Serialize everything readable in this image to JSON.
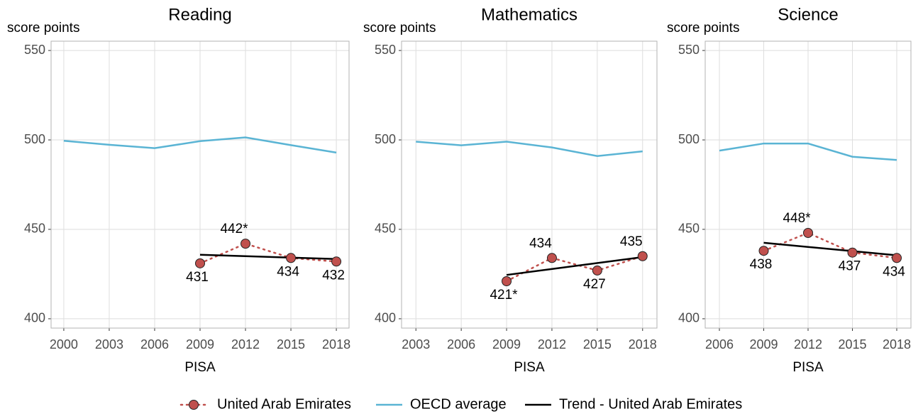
{
  "legend": {
    "series": [
      {
        "name": "United Arab Emirates",
        "color": "#c0504d"
      },
      {
        "name": "OECD average",
        "color": "#5ab4d4"
      },
      {
        "name": "Trend - United Arab Emirates",
        "color": "#000000"
      }
    ]
  },
  "chart_data": [
    {
      "type": "line",
      "title": "Reading",
      "ylabel": "score points",
      "xlabel": "PISA",
      "x": [
        2000,
        2003,
        2006,
        2009,
        2012,
        2015,
        2018
      ],
      "xlim": [
        1999.16,
        2018.84
      ],
      "xticks": [
        2000,
        2003,
        2006,
        2009,
        2012,
        2015,
        2018
      ],
      "ylim": [
        394.8,
        555.2
      ],
      "yticks": [
        400,
        450,
        500,
        550
      ],
      "grid": true,
      "series": [
        {
          "values": [
            null,
            null,
            null,
            431,
            442,
            434,
            432
          ],
          "value_labels": [
            null,
            null,
            null,
            "431",
            "442*",
            "434",
            "432"
          ]
        },
        {
          "values": [
            499.5,
            497.3,
            495.4,
            499.3,
            501.4,
            497.1,
            492.9
          ]
        },
        {
          "x": [
            2009,
            2018
          ],
          "values": [
            435.8,
            433.4
          ]
        }
      ]
    },
    {
      "type": "line",
      "title": "Mathematics",
      "ylabel": "score points",
      "xlabel": "PISA",
      "x": [
        2003,
        2006,
        2009,
        2012,
        2015,
        2018
      ],
      "xlim": [
        2002.05,
        2018.95
      ],
      "xticks": [
        2003,
        2006,
        2009,
        2012,
        2015,
        2018
      ],
      "ylim": [
        394.8,
        555.2
      ],
      "yticks": [
        400,
        450,
        500,
        550
      ],
      "grid": true,
      "series": [
        {
          "values": [
            null,
            null,
            421,
            434,
            427,
            435
          ],
          "value_labels": [
            null,
            null,
            "421*",
            "434",
            "427",
            "435"
          ]
        },
        {
          "values": [
            499,
            497,
            499,
            495.8,
            491,
            493.6
          ]
        },
        {
          "x": [
            2009,
            2018
          ],
          "values": [
            424.5,
            434.5
          ]
        }
      ]
    },
    {
      "type": "line",
      "title": "Science",
      "ylabel": "score points",
      "xlabel": "PISA",
      "x": [
        2006,
        2009,
        2012,
        2015,
        2018
      ],
      "xlim": [
        2005.04,
        2018.96
      ],
      "xticks": [
        2006,
        2009,
        2012,
        2015,
        2018
      ],
      "ylim": [
        394.8,
        555.2
      ],
      "yticks": [
        400,
        450,
        500,
        550
      ],
      "grid": true,
      "series": [
        {
          "values": [
            null,
            438,
            448,
            437,
            434
          ],
          "value_labels": [
            null,
            "438",
            "448*",
            "437",
            "434"
          ]
        },
        {
          "values": [
            494,
            498,
            498,
            490.6,
            488.8
          ]
        },
        {
          "x": [
            2009,
            2018
          ],
          "values": [
            442.5,
            435.5
          ]
        }
      ]
    }
  ]
}
